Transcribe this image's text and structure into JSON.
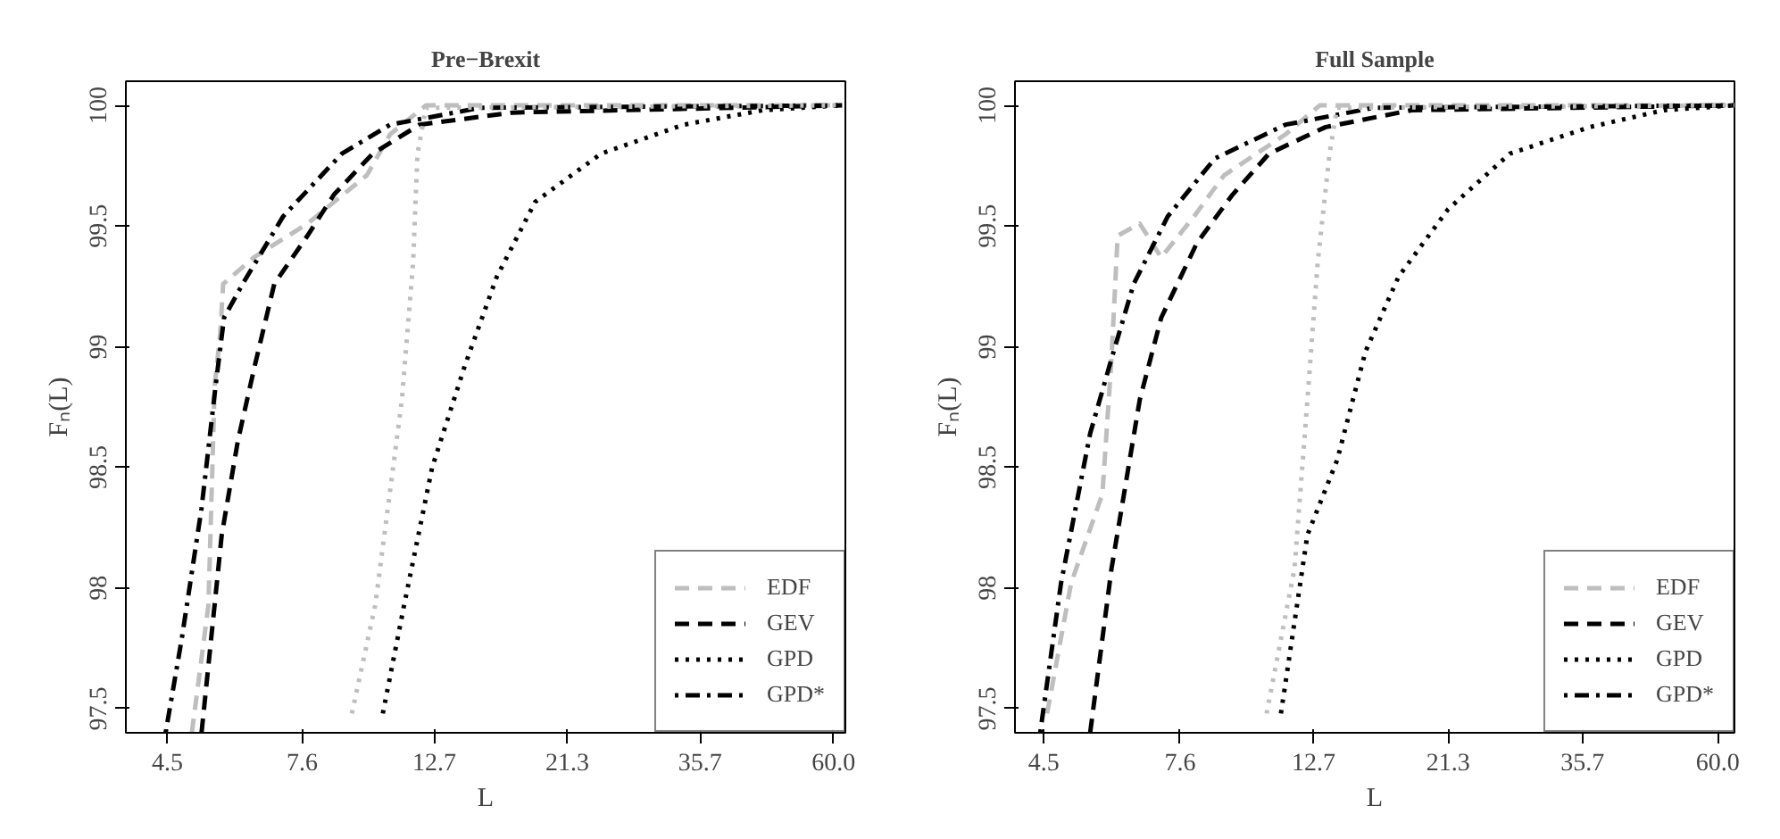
{
  "chart_data": [
    {
      "type": "line",
      "title": "Pre−Brexit",
      "xlabel": "L",
      "ylabel": "Fₙ(L)",
      "log": "x",
      "xlim": [
        3.83,
        62.8
      ],
      "ylim": [
        97.4,
        100.1
      ],
      "xticks": [
        4.5,
        7.6,
        12.7,
        21.3,
        35.7,
        {
          "value": 60.0,
          "label": "60.0"
        }
      ],
      "yticks": [
        97.5,
        98,
        98.5,
        99,
        99.5,
        100
      ],
      "grid": false,
      "legend": "bottom right",
      "marker": "none",
      "series": [
        {
          "name": "EDF",
          "color": "#bebebe",
          "line_style": "dashed",
          "x": [
            4.95,
            5.28,
            5.41,
            5.53,
            5.59,
            6.3,
            7.76,
            9.77,
            10.7,
            12.3,
            62
          ],
          "values": [
            97.4,
            97.93,
            98.84,
            99.06,
            99.26,
            99.37,
            99.51,
            99.71,
            99.88,
            100.0,
            100.0
          ]
        },
        {
          "name": "GEV",
          "color": "#000000",
          "line_style": "dashed",
          "x": [
            5.14,
            5.56,
            5.92,
            6.32,
            6.82,
            7.76,
            8.6,
            10.0,
            12.0,
            17.2,
            62
          ],
          "values": [
            97.4,
            98.22,
            98.61,
            98.92,
            99.26,
            99.46,
            99.63,
            99.8,
            99.92,
            99.97,
            100.0
          ]
        },
        {
          "name": "GPD",
          "color": "#000000",
          "line_style": "dotted",
          "x": [
            10.4,
            11.3,
            12.6,
            14.3,
            16.2,
            18.8,
            24.3,
            33.5,
            45.6,
            62
          ],
          "values": [
            97.48,
            97.93,
            98.5,
            98.92,
            99.29,
            99.6,
            99.8,
            99.92,
            99.98,
            100.0
          ]
        },
        {
          "name": "GPD*",
          "color": "#000000",
          "line_style": "dotdash",
          "x": [
            4.47,
            4.76,
            5.14,
            5.43,
            5.61,
            6.03,
            7.06,
            8.87,
            10.7,
            15.2,
            62
          ],
          "values": [
            97.4,
            97.79,
            98.33,
            98.84,
            99.12,
            99.26,
            99.54,
            99.8,
            99.92,
            99.99,
            100.0
          ]
        },
        {
          "color": "#bebebe",
          "line_style": "dotted",
          "x": [
            9.22,
            10.1,
            11.2,
            11.7,
            11.9,
            12.3,
            62
          ],
          "values": [
            97.48,
            97.93,
            98.78,
            99.35,
            99.8,
            99.99,
            100.0
          ]
        }
      ]
    },
    {
      "type": "line",
      "title": "Full Sample",
      "xlabel": "L",
      "ylabel": "Fₙ(L)",
      "log": "x",
      "xlim": [
        4.03,
        64
      ],
      "ylim": [
        97.4,
        100.1
      ],
      "xticks": [
        4.5,
        7.6,
        12.7,
        21.3,
        35.7,
        {
          "value": 60.0,
          "label": "60.0"
        }
      ],
      "yticks": [
        97.5,
        98,
        98.5,
        99,
        99.5,
        100
      ],
      "grid": false,
      "legend": "bottom right",
      "marker": "none",
      "series": [
        {
          "name": "EDF",
          "color": "#bebebe",
          "line_style": "dashed",
          "x": [
            4.56,
            5.0,
            5.64,
            5.84,
            5.98,
            6.51,
            7.07,
            8.02,
            9.0,
            11.4,
            13.0,
            64
          ],
          "values": [
            97.48,
            98.02,
            98.39,
            98.95,
            99.46,
            99.51,
            99.37,
            99.54,
            99.71,
            99.88,
            100.0,
            100.0
          ]
        },
        {
          "name": "GEV",
          "color": "#000000",
          "line_style": "dashed",
          "x": [
            5.38,
            5.84,
            6.51,
            7.07,
            8.11,
            9.3,
            10.7,
            13.3,
            18.5,
            64
          ],
          "values": [
            97.4,
            98.08,
            98.78,
            99.12,
            99.43,
            99.63,
            99.8,
            99.91,
            99.98,
            100.0
          ]
        },
        {
          "name": "GPD",
          "color": "#000000",
          "line_style": "dotted",
          "x": [
            11.2,
            12.4,
            13.9,
            15.5,
            17.6,
            21.3,
            27.0,
            36.7,
            48.8,
            64
          ],
          "values": [
            97.48,
            98.22,
            98.53,
            98.98,
            99.29,
            99.57,
            99.8,
            99.91,
            99.98,
            100.0
          ]
        },
        {
          "name": "GPD*",
          "color": "#000000",
          "line_style": "dotdash",
          "x": [
            4.44,
            4.81,
            5.38,
            5.84,
            6.36,
            7.25,
            8.69,
            11.4,
            16.0,
            64
          ],
          "values": [
            97.4,
            98.02,
            98.64,
            98.95,
            99.26,
            99.54,
            99.78,
            99.92,
            99.99,
            100.0
          ]
        },
        {
          "color": "#bebebe",
          "line_style": "dotted",
          "x": [
            10.6,
            11.8,
            12.4,
            12.9,
            13.5,
            13.9,
            64
          ],
          "values": [
            97.48,
            98.08,
            98.78,
            99.35,
            99.8,
            99.99,
            100.0
          ]
        }
      ]
    }
  ]
}
